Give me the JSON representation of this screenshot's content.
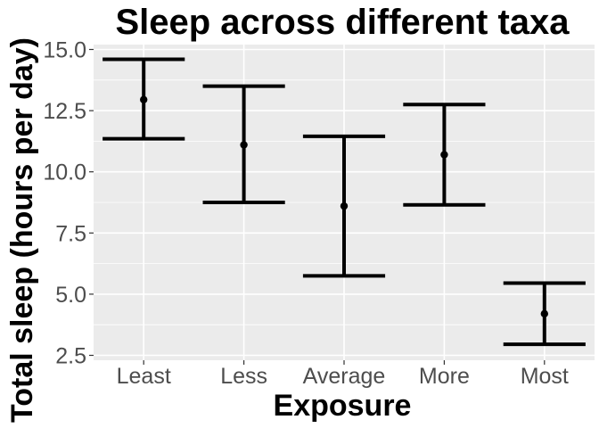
{
  "chart_data": {
    "type": "errorbar",
    "title": "Sleep across different taxa",
    "xlabel": "Exposure",
    "ylabel": "Total sleep (hours per day)",
    "categories": [
      "Least",
      "Less",
      "Average",
      "More",
      "Most"
    ],
    "mean": [
      12.95,
      11.1,
      8.6,
      10.7,
      4.2
    ],
    "upper": [
      14.6,
      13.5,
      11.45,
      12.75,
      5.45
    ],
    "lower": [
      11.35,
      8.75,
      5.75,
      8.65,
      2.95
    ],
    "ylim": [
      2.3,
      15.2
    ],
    "yticks": [
      2.5,
      5.0,
      7.5,
      10.0,
      12.5,
      15.0
    ],
    "ytick_labels": [
      "2.5",
      "5.0",
      "7.5",
      "10.0",
      "12.5",
      "15.0"
    ],
    "grid": true,
    "panel_color": "#ebebeb",
    "grid_color": "#ffffff",
    "mark_color": "#000000"
  }
}
